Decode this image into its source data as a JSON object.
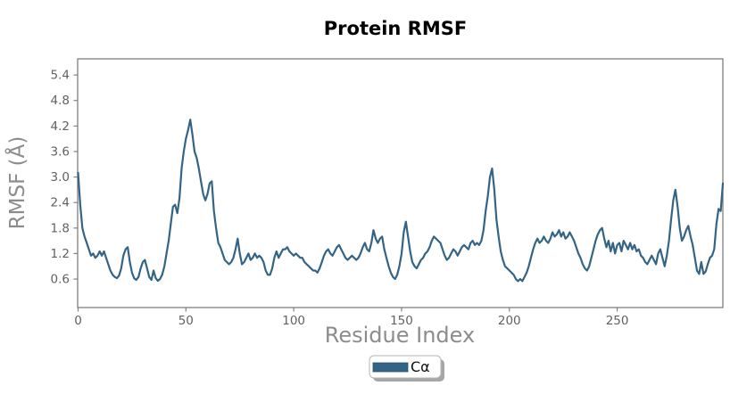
{
  "chart_data": {
    "type": "line",
    "title": "Protein RMSF",
    "xlabel": "Residue Index",
    "ylabel": "RMSF (Å)",
    "xlim": [
      0,
      299
    ],
    "ylim": [
      -0.07,
      5.78
    ],
    "x_ticks": [
      0,
      50,
      100,
      150,
      200,
      250
    ],
    "y_ticks": [
      0.6,
      1.2,
      1.8,
      2.4,
      3.0,
      3.6,
      4.2,
      4.8,
      5.4
    ],
    "grid": false,
    "legend": {
      "label": "Cα",
      "position": "below-axes-center",
      "boxed": true,
      "shadow": true
    },
    "series": [
      {
        "name": "Cα",
        "color": "#346485",
        "x_start": 0,
        "x_step": 1,
        "values": [
          3.1,
          2.35,
          1.8,
          1.6,
          1.45,
          1.3,
          1.15,
          1.2,
          1.1,
          1.15,
          1.25,
          1.15,
          1.25,
          1.1,
          0.95,
          0.8,
          0.7,
          0.65,
          0.62,
          0.68,
          0.85,
          1.15,
          1.3,
          1.35,
          1.0,
          0.75,
          0.62,
          0.58,
          0.65,
          0.85,
          1.0,
          1.05,
          0.85,
          0.65,
          0.58,
          0.8,
          0.62,
          0.56,
          0.6,
          0.7,
          0.9,
          1.2,
          1.5,
          1.9,
          2.3,
          2.35,
          2.15,
          2.5,
          3.2,
          3.6,
          3.9,
          4.1,
          4.35,
          4.0,
          3.6,
          3.45,
          3.2,
          2.9,
          2.6,
          2.45,
          2.6,
          2.85,
          2.9,
          2.2,
          1.8,
          1.45,
          1.35,
          1.2,
          1.05,
          1.0,
          0.95,
          1.0,
          1.1,
          1.3,
          1.55,
          1.2,
          0.95,
          1.0,
          1.1,
          1.2,
          1.05,
          1.1,
          1.2,
          1.1,
          1.15,
          1.1,
          1.0,
          0.8,
          0.7,
          0.7,
          0.85,
          1.1,
          1.25,
          1.1,
          1.2,
          1.3,
          1.3,
          1.35,
          1.25,
          1.2,
          1.15,
          1.2,
          1.15,
          1.1,
          1.1,
          1.0,
          0.95,
          0.9,
          0.85,
          0.8,
          0.8,
          0.75,
          0.85,
          1.0,
          1.15,
          1.25,
          1.3,
          1.2,
          1.15,
          1.25,
          1.35,
          1.4,
          1.3,
          1.2,
          1.1,
          1.05,
          1.1,
          1.15,
          1.1,
          1.05,
          1.1,
          1.2,
          1.35,
          1.45,
          1.3,
          1.25,
          1.45,
          1.75,
          1.55,
          1.45,
          1.55,
          1.6,
          1.3,
          1.1,
          0.9,
          0.75,
          0.65,
          0.6,
          0.7,
          0.9,
          1.2,
          1.7,
          1.95,
          1.6,
          1.25,
          1.0,
          0.9,
          0.85,
          0.95,
          1.05,
          1.1,
          1.2,
          1.25,
          1.35,
          1.5,
          1.6,
          1.55,
          1.5,
          1.45,
          1.3,
          1.15,
          1.05,
          1.1,
          1.2,
          1.3,
          1.25,
          1.15,
          1.25,
          1.35,
          1.4,
          1.35,
          1.3,
          1.45,
          1.5,
          1.4,
          1.45,
          1.4,
          1.5,
          1.75,
          2.2,
          2.55,
          3.0,
          3.2,
          2.7,
          2.0,
          1.6,
          1.25,
          1.05,
          0.9,
          0.85,
          0.8,
          0.75,
          0.7,
          0.6,
          0.55,
          0.6,
          0.55,
          0.65,
          0.75,
          0.9,
          1.1,
          1.3,
          1.45,
          1.55,
          1.45,
          1.5,
          1.6,
          1.5,
          1.45,
          1.55,
          1.7,
          1.6,
          1.65,
          1.75,
          1.6,
          1.7,
          1.55,
          1.6,
          1.7,
          1.6,
          1.5,
          1.35,
          1.2,
          1.1,
          0.95,
          0.85,
          0.8,
          0.9,
          1.1,
          1.3,
          1.5,
          1.65,
          1.75,
          1.8,
          1.55,
          1.35,
          1.5,
          1.25,
          1.45,
          1.2,
          1.4,
          1.45,
          1.25,
          1.5,
          1.4,
          1.3,
          1.45,
          1.3,
          1.4,
          1.25,
          1.3,
          1.15,
          1.1,
          1.0,
          0.95,
          1.05,
          1.15,
          1.05,
          0.95,
          1.2,
          1.3,
          1.1,
          0.9,
          1.15,
          1.5,
          2.0,
          2.45,
          2.7,
          2.3,
          1.8,
          1.5,
          1.6,
          1.75,
          1.85,
          1.6,
          1.4,
          1.1,
          0.8,
          0.72,
          1.0,
          0.72,
          0.78,
          0.95,
          1.1,
          1.15,
          1.3,
          1.9,
          2.25,
          2.2,
          2.85
        ]
      }
    ]
  },
  "colors": {
    "line": "#346485",
    "spine": "#808080",
    "tick_label": "#616161",
    "axis_label": "#8c8c8c",
    "title": "#000000",
    "background": "#ffffff",
    "legend_border": "#b5b5b5",
    "legend_shadow": "#a6a6a6",
    "legend_background": "#ffffff"
  }
}
